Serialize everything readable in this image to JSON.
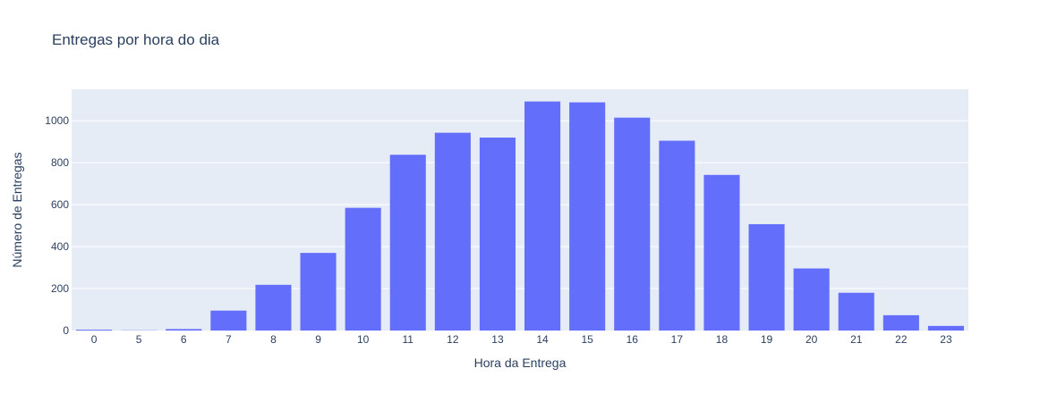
{
  "colors": {
    "plot_background": "#e5ecf6",
    "gridline": "#ffffff",
    "bar": "#636efa",
    "text": "#2a3f5f",
    "page_background": "#ffffff"
  },
  "chart_data": {
    "type": "bar",
    "title": "Entregas por hora do dia",
    "xlabel": "Hora da Entrega",
    "ylabel": "Número de Entregas",
    "categories": [
      "0",
      "5",
      "6",
      "7",
      "8",
      "9",
      "10",
      "11",
      "12",
      "13",
      "14",
      "15",
      "16",
      "17",
      "18",
      "19",
      "20",
      "21",
      "22",
      "23"
    ],
    "values": [
      4,
      1,
      7,
      95,
      218,
      370,
      585,
      838,
      943,
      920,
      1092,
      1088,
      1015,
      905,
      742,
      507,
      296,
      180,
      73,
      22
    ],
    "ylim": [
      0,
      1150
    ],
    "yticks": [
      0,
      200,
      400,
      600,
      800,
      1000
    ],
    "ytick_labels": [
      "0",
      "200",
      "400",
      "600",
      "800",
      "1000"
    ],
    "grid": true,
    "legend": "none"
  }
}
